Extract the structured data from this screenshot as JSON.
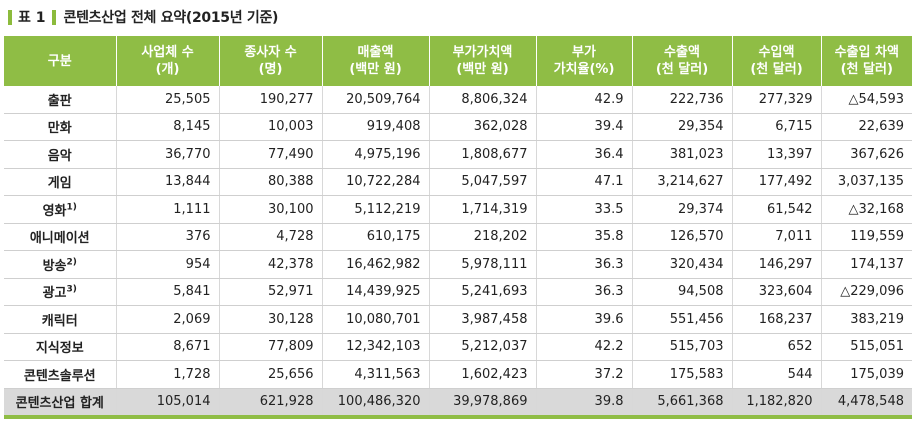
{
  "title": {
    "tag": "표 1",
    "text": "콘텐츠산업 전체 요약(2015년 기준)"
  },
  "colors": {
    "header_bg": "#8fbd45",
    "total_bg": "#d9d9d9"
  },
  "columns": [
    [
      "구분"
    ],
    [
      "사업체 수",
      "(개)"
    ],
    [
      "종사자 수",
      "(명)"
    ],
    [
      "매출액",
      "(백만 원)"
    ],
    [
      "부가가치액",
      "(백만 원)"
    ],
    [
      "부가",
      "가치율(%)"
    ],
    [
      "수출액",
      "(천 달러)"
    ],
    [
      "수입액",
      "(천 달러)"
    ],
    [
      "수출입 차액",
      "(천 달러)"
    ]
  ],
  "rows": [
    {
      "name": "출판",
      "sup": "",
      "cells": [
        "25,505",
        "190,277",
        "20,509,764",
        "8,806,324",
        "42.9",
        "222,736",
        "277,329",
        "△54,593"
      ]
    },
    {
      "name": "만화",
      "sup": "",
      "cells": [
        "8,145",
        "10,003",
        "919,408",
        "362,028",
        "39.4",
        "29,354",
        "6,715",
        "22,639"
      ]
    },
    {
      "name": "음악",
      "sup": "",
      "cells": [
        "36,770",
        "77,490",
        "4,975,196",
        "1,808,677",
        "36.4",
        "381,023",
        "13,397",
        "367,626"
      ]
    },
    {
      "name": "게임",
      "sup": "",
      "cells": [
        "13,844",
        "80,388",
        "10,722,284",
        "5,047,597",
        "47.1",
        "3,214,627",
        "177,492",
        "3,037,135"
      ]
    },
    {
      "name": "영화",
      "sup": "1)",
      "cells": [
        "1,111",
        "30,100",
        "5,112,219",
        "1,714,319",
        "33.5",
        "29,374",
        "61,542",
        "△32,168"
      ]
    },
    {
      "name": "애니메이션",
      "sup": "",
      "cells": [
        "376",
        "4,728",
        "610,175",
        "218,202",
        "35.8",
        "126,570",
        "7,011",
        "119,559"
      ]
    },
    {
      "name": "방송",
      "sup": "2)",
      "cells": [
        "954",
        "42,378",
        "16,462,982",
        "5,978,111",
        "36.3",
        "320,434",
        "146,297",
        "174,137"
      ]
    },
    {
      "name": "광고",
      "sup": "3)",
      "cells": [
        "5,841",
        "52,971",
        "14,439,925",
        "5,241,693",
        "36.3",
        "94,508",
        "323,604",
        "△229,096"
      ]
    },
    {
      "name": "캐릭터",
      "sup": "",
      "cells": [
        "2,069",
        "30,128",
        "10,080,701",
        "3,987,458",
        "39.6",
        "551,456",
        "168,237",
        "383,219"
      ]
    },
    {
      "name": "지식정보",
      "sup": "",
      "cells": [
        "8,671",
        "77,809",
        "12,342,103",
        "5,212,037",
        "42.2",
        "515,703",
        "652",
        "515,051"
      ]
    },
    {
      "name": "콘텐츠솔루션",
      "sup": "",
      "cells": [
        "1,728",
        "25,656",
        "4,311,563",
        "1,602,423",
        "37.2",
        "175,583",
        "544",
        "175,039"
      ]
    }
  ],
  "total": {
    "name": "콘텐츠산업 합계",
    "cells": [
      "105,014",
      "621,928",
      "100,486,320",
      "39,978,869",
      "39.8",
      "5,661,368",
      "1,182,820",
      "4,478,548"
    ]
  }
}
